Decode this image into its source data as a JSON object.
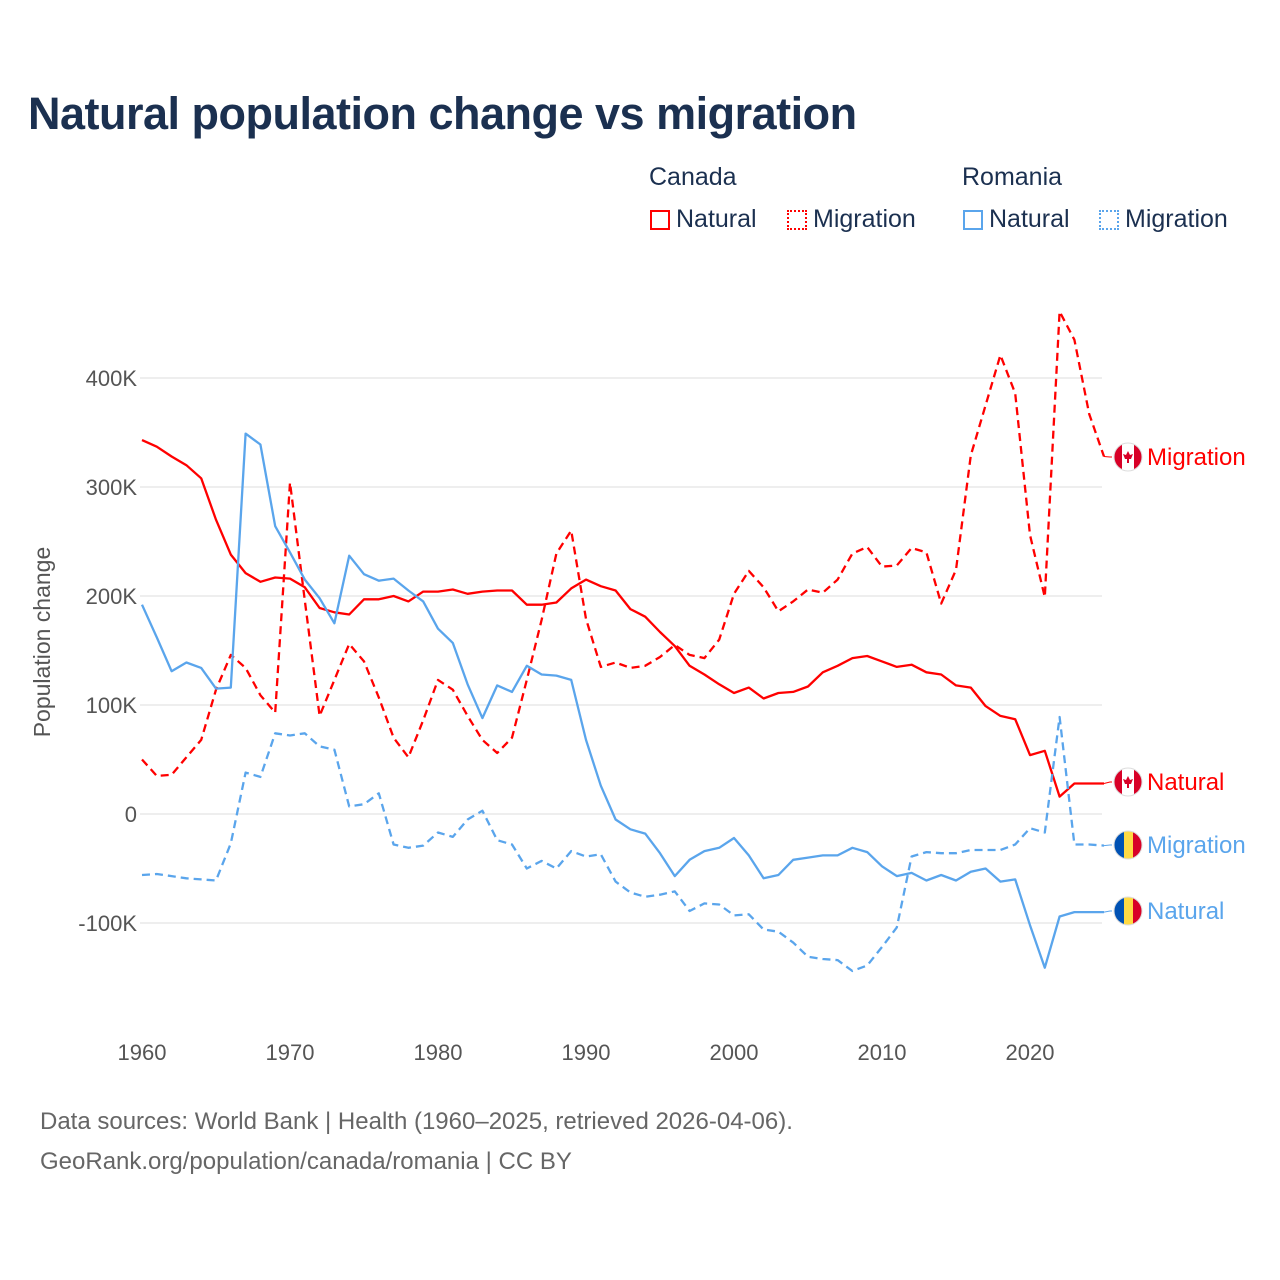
{
  "title": "Natural population change vs migration",
  "legend": {
    "groups": [
      {
        "name": "Canada",
        "items": [
          "Natural",
          "Migration"
        ]
      },
      {
        "name": "Romania",
        "items": [
          "Natural",
          "Migration"
        ]
      }
    ]
  },
  "colors": {
    "canada": "#ff0000",
    "romania": "#5aa5ec"
  },
  "footer": {
    "line1": "Data sources: World Bank | Health (1960–2025, retrieved 2026-04-06).",
    "line2": "GeoRank.org/population/canada/romania | CC BY"
  },
  "chart_data": {
    "type": "line",
    "title": "Natural population change vs migration",
    "xlabel": "",
    "ylabel": "Population change",
    "xlim": [
      1960,
      2025
    ],
    "ylim": [
      -175000,
      470000
    ],
    "x_ticks": [
      1960,
      1970,
      1980,
      1990,
      2000,
      2010,
      2020
    ],
    "x_tick_labels": [
      "1960",
      "1970",
      "1980",
      "1990",
      "2000",
      "2010",
      "2020"
    ],
    "y_ticks": [
      -100000,
      0,
      100000,
      200000,
      300000,
      400000
    ],
    "y_tick_labels": [
      "-100K",
      "0",
      "100K",
      "200K",
      "300K",
      "400K"
    ],
    "grid": true,
    "legend_position": "top-right",
    "start_year": 1960,
    "units": "thousands",
    "series": [
      {
        "name": "Canada Natural",
        "country": "Canada",
        "kind": "Natural",
        "end_label": "Natural",
        "flag": "canada",
        "dash": false,
        "values": [
          343,
          337,
          328,
          320,
          308,
          270,
          238,
          221,
          213,
          217,
          216,
          208,
          189,
          185,
          183,
          197,
          197,
          200,
          195,
          204,
          204,
          206,
          202,
          204,
          205,
          205,
          192,
          192,
          194,
          207,
          215,
          209,
          205,
          188,
          181,
          167,
          154,
          136,
          128,
          119,
          111,
          116,
          106,
          111,
          112,
          117,
          130,
          136,
          143,
          145,
          140,
          135,
          137,
          130,
          128,
          118,
          116,
          99,
          90,
          87,
          54,
          58,
          16,
          28,
          28,
          28
        ]
      },
      {
        "name": "Canada Migration",
        "country": "Canada",
        "kind": "Migration",
        "end_label": "Migration",
        "flag": "canada",
        "dash": true,
        "values": [
          50,
          35,
          36,
          52,
          68,
          114,
          146,
          134,
          109,
          93,
          304,
          196,
          90,
          123,
          156,
          140,
          107,
          70,
          52,
          86,
          123,
          114,
          90,
          68,
          56,
          70,
          123,
          178,
          239,
          260,
          179,
          135,
          139,
          134,
          136,
          144,
          155,
          146,
          143,
          160,
          202,
          223,
          208,
          186,
          195,
          206,
          203,
          215,
          239,
          245,
          227,
          228,
          244,
          240,
          193,
          224,
          329,
          375,
          421,
          386,
          256,
          199,
          461,
          435,
          367,
          328
        ]
      },
      {
        "name": "Romania Natural",
        "country": "Romania",
        "kind": "Natural",
        "end_label": "Natural",
        "flag": "romania",
        "dash": false,
        "values": [
          192,
          162,
          131,
          139,
          134,
          115,
          116,
          349,
          339,
          264,
          240,
          215,
          198,
          175,
          237,
          220,
          214,
          216,
          205,
          195,
          170,
          157,
          119,
          88,
          118,
          112,
          136,
          128,
          127,
          123,
          68,
          26,
          -5,
          -14,
          -18,
          -36,
          -57,
          -42,
          -34,
          -31,
          -22,
          -38,
          -59,
          -56,
          -42,
          -40,
          -38,
          -38,
          -31,
          -35,
          -48,
          -57,
          -54,
          -61,
          -56,
          -61,
          -53,
          -50,
          -62,
          -60,
          -102,
          -141,
          -94,
          -90,
          -90,
          -90
        ]
      },
      {
        "name": "Romania Migration",
        "country": "Romania",
        "kind": "Migration",
        "end_label": "Migration",
        "flag": "romania",
        "dash": true,
        "values": [
          -56,
          -55,
          -57,
          -59,
          -60,
          -61,
          -27,
          38,
          34,
          74,
          72,
          74,
          62,
          59,
          7,
          9,
          19,
          -28,
          -31,
          -29,
          -17,
          -21,
          -5,
          3,
          -24,
          -28,
          -50,
          -43,
          -50,
          -34,
          -39,
          -37,
          -62,
          -72,
          -76,
          -74,
          -71,
          -89,
          -82,
          -83,
          -93,
          -92,
          -106,
          -108,
          -118,
          -131,
          -133,
          -134,
          -144,
          -139,
          -122,
          -104,
          -39,
          -35,
          -36,
          -36,
          -33,
          -33,
          -33,
          -28,
          -13,
          -17,
          89,
          -28,
          -28,
          -29
        ]
      }
    ]
  }
}
